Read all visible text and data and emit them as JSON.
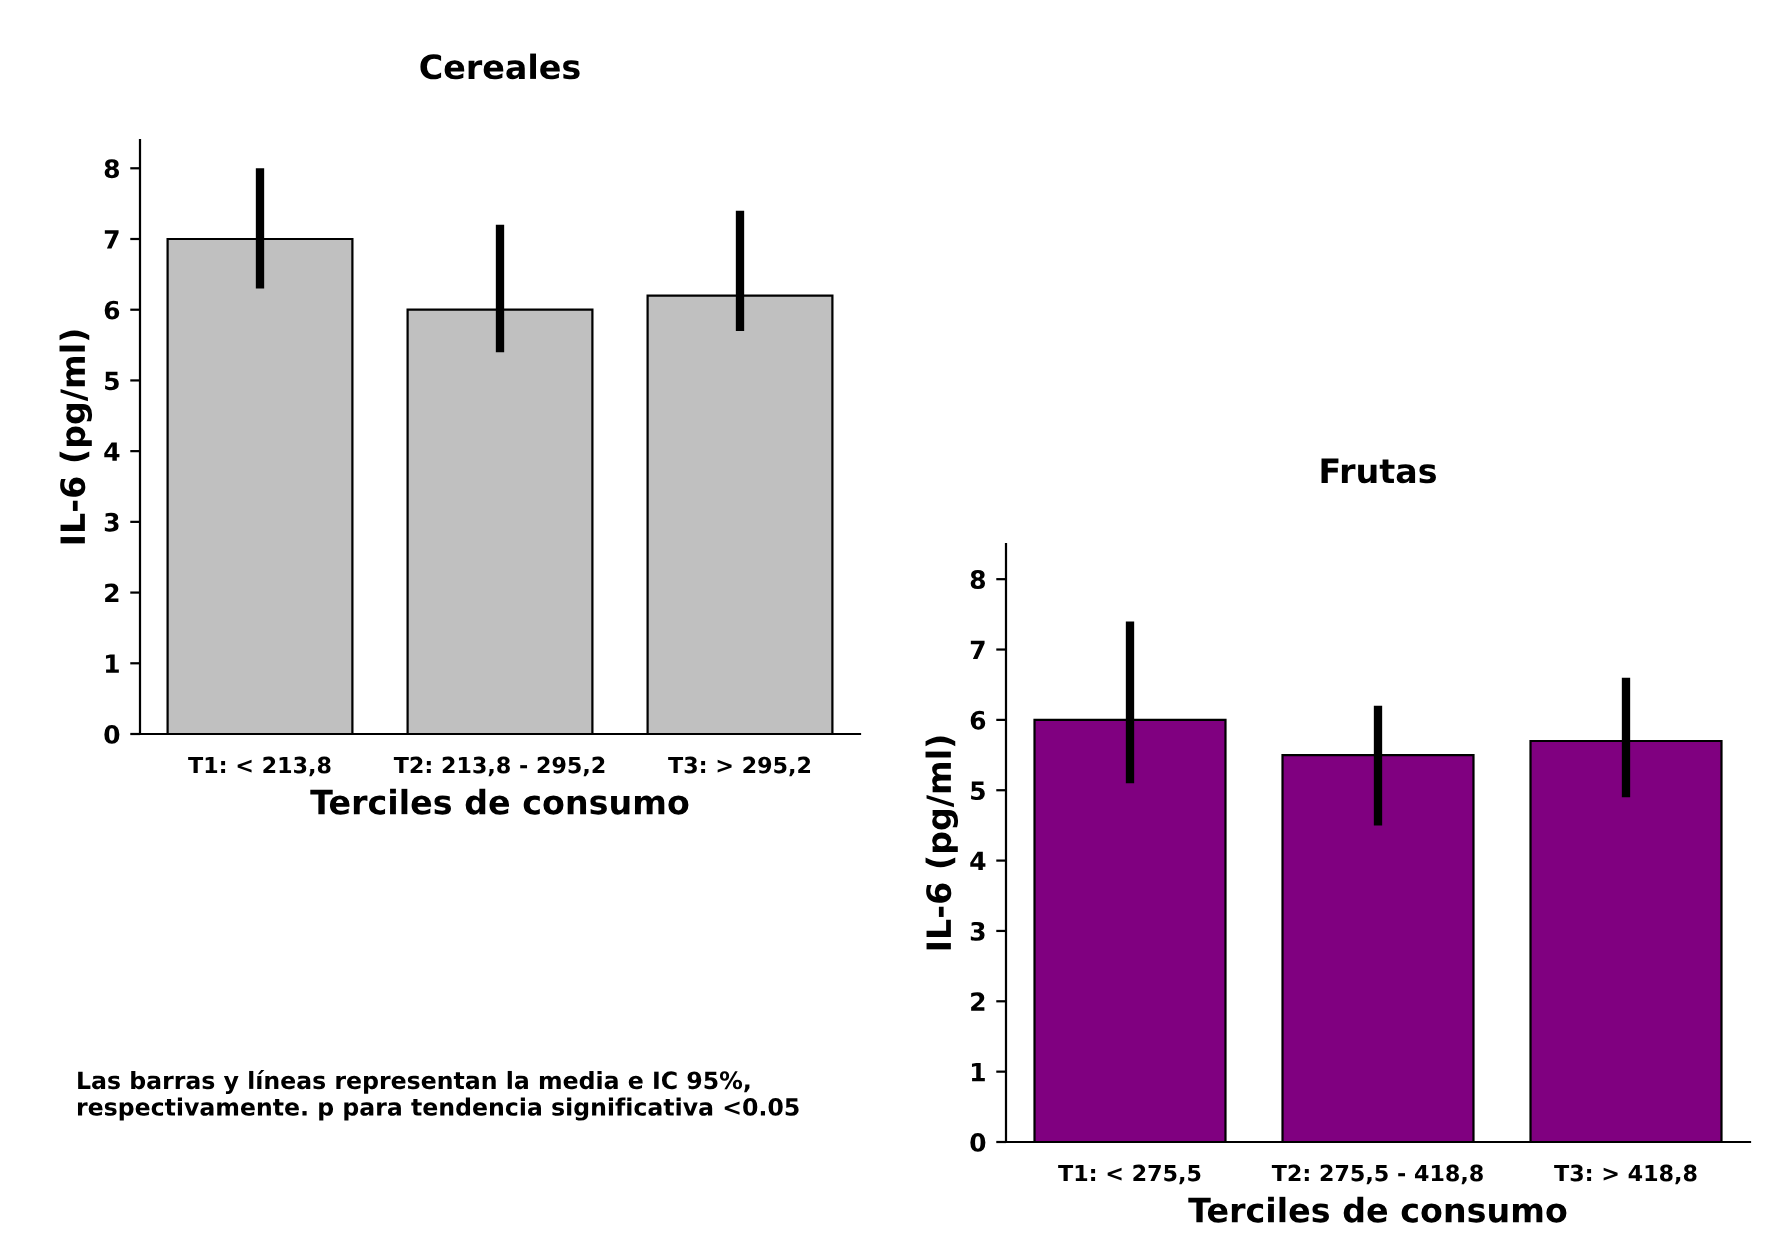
{
  "chart_data": [
    {
      "type": "bar",
      "title": "Cereales",
      "xlabel": "Terciles de consumo",
      "ylabel": "IL-6 (pg/ml)",
      "categories": [
        "T1: < 213,8",
        "T2: 213,8 - 295,2",
        "T3: > 295,2"
      ],
      "values": [
        7.0,
        6.0,
        6.2
      ],
      "color": "#c0c0c0",
      "errors": [
        [
          6.3,
          8.0
        ],
        [
          5.4,
          7.2
        ],
        [
          5.7,
          7.4
        ]
      ],
      "ylim": [
        0,
        8.4
      ],
      "yticks": [
        0,
        1,
        2,
        3,
        4,
        5,
        6,
        7,
        8
      ],
      "grid": false,
      "annotations": [
        "Las barras y líneas representan la media e IC 95%, respectivamente. p para tendencia significativa <0.05"
      ]
    },
    {
      "type": "bar",
      "title": "Frutas",
      "xlabel": "Terciles de consumo",
      "ylabel": "IL-6 (pg/ml)",
      "categories": [
        "T1: < 275,5",
        "T2: 275,5 - 418,8",
        "T3: > 418,8"
      ],
      "values": [
        6.0,
        5.5,
        5.7
      ],
      "color": "#800080",
      "errors": [
        [
          5.1,
          7.4
        ],
        [
          4.5,
          6.2
        ],
        [
          4.9,
          6.6
        ]
      ],
      "ylim": [
        0,
        8.5
      ],
      "yticks": [
        0,
        1,
        2,
        3,
        4,
        5,
        6,
        7,
        8
      ],
      "grid": false
    }
  ]
}
